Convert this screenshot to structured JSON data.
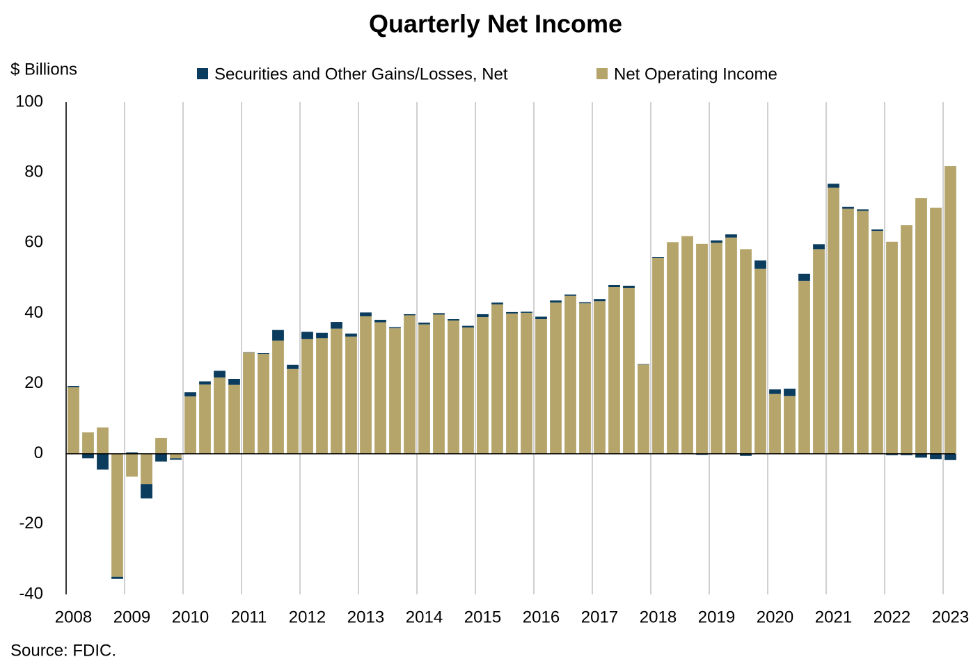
{
  "chart_data": {
    "type": "bar",
    "title": "Quarterly Net Income",
    "y_label": "$ Billions",
    "source": "Source: FDIC.",
    "categories": [
      "2008",
      null,
      null,
      null,
      "2009",
      null,
      null,
      null,
      "2010",
      null,
      null,
      null,
      "2011",
      null,
      null,
      null,
      "2012",
      null,
      null,
      null,
      "2013",
      null,
      null,
      null,
      "2014",
      null,
      null,
      null,
      "2015",
      null,
      null,
      null,
      "2016",
      null,
      null,
      null,
      "2017",
      null,
      null,
      null,
      "2018",
      null,
      null,
      null,
      "2019",
      null,
      null,
      null,
      "2020",
      null,
      null,
      null,
      "2021",
      null,
      null,
      null,
      "2022",
      null,
      null,
      null,
      "2023"
    ],
    "series": [
      {
        "name": "Securities and Other Gains/Losses, Net",
        "color": "#0b3c5d",
        "values": [
          0.4,
          -1.3,
          -4.5,
          -0.6,
          0.4,
          -4.1,
          -2.2,
          -0.4,
          1.2,
          0.9,
          1.9,
          1.7,
          0.1,
          0.2,
          3.0,
          1.2,
          2.1,
          1.5,
          1.9,
          0.9,
          1.1,
          0.7,
          0.3,
          0.3,
          0.5,
          0.4,
          0.4,
          0.5,
          0.8,
          0.5,
          0.4,
          0.3,
          0.7,
          0.6,
          0.4,
          0.3,
          0.6,
          0.6,
          0.6,
          0.1,
          0.2,
          0,
          0,
          -0.3,
          0.7,
          0.9,
          -0.6,
          2.4,
          1.3,
          2.1,
          2.0,
          1.4,
          1.1,
          0.5,
          0.4,
          0.4,
          -0.4,
          -0.4,
          -1.1,
          -1.5,
          -1.8
        ]
      },
      {
        "name": "Net Operating Income",
        "color": "#b5a56b",
        "values": [
          18.9,
          6.1,
          7.5,
          -35.0,
          -6.5,
          -8.6,
          4.5,
          -1.3,
          16.3,
          19.7,
          21.7,
          19.6,
          28.8,
          28.4,
          32.2,
          24.1,
          32.6,
          32.9,
          35.6,
          33.3,
          39.1,
          37.4,
          35.7,
          39.4,
          36.8,
          39.6,
          37.9,
          35.9,
          38.9,
          42.5,
          39.9,
          40.1,
          38.3,
          43.0,
          44.9,
          42.8,
          43.4,
          47.4,
          47.2,
          25.4,
          55.7,
          60.2,
          61.9,
          59.7,
          60.0,
          61.5,
          58.2,
          52.6,
          17.0,
          16.4,
          49.2,
          58.2,
          75.7,
          69.7,
          69.1,
          63.4,
          60.3,
          65.0,
          72.7,
          70.0,
          81.8
        ]
      }
    ],
    "stacked": true,
    "ylim": [
      -40,
      100
    ],
    "yticks": [
      -40,
      -20,
      0,
      20,
      40,
      60,
      80,
      100
    ],
    "grid": true
  }
}
